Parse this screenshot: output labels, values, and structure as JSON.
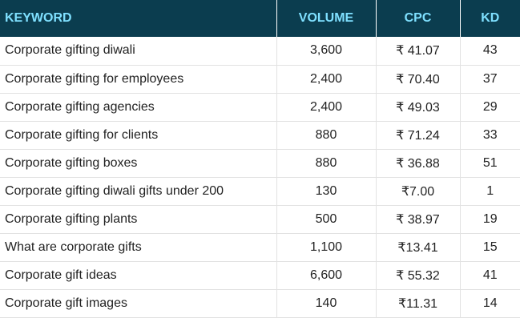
{
  "table": {
    "headers": [
      "KEYWORD",
      "VOLUME",
      "CPC",
      "KD"
    ],
    "rows": [
      {
        "keyword": "Corporate gifting diwali",
        "volume": "3,600",
        "cpc": "₹ 41.07",
        "kd": "43"
      },
      {
        "keyword": "Corporate gifting for employees",
        "volume": "2,400",
        "cpc": "₹ 70.40",
        "kd": "37"
      },
      {
        "keyword": "Corporate gifting agencies",
        "volume": "2,400",
        "cpc": "₹ 49.03",
        "kd": "29"
      },
      {
        "keyword": "Corporate gifting for clients",
        "volume": "880",
        "cpc": "₹ 71.24",
        "kd": "33"
      },
      {
        "keyword": "Corporate gifting boxes",
        "volume": "880",
        "cpc": "₹ 36.88",
        "kd": "51"
      },
      {
        "keyword": "Corporate gifting diwali gifts under 200",
        "volume": "130",
        "cpc": "₹7.00",
        "kd": "1"
      },
      {
        "keyword": "Corporate gifting plants",
        "volume": "500",
        "cpc": "₹ 38.97",
        "kd": "19"
      },
      {
        "keyword": "What are corporate gifts",
        "volume": "1,100",
        "cpc": "₹13.41",
        "kd": "15"
      },
      {
        "keyword": "Corporate gift ideas",
        "volume": "6,600",
        "cpc": "₹ 55.32",
        "kd": "41"
      },
      {
        "keyword": "Corporate gift images",
        "volume": "140",
        "cpc": "₹11.31",
        "kd": "14"
      }
    ]
  },
  "colors": {
    "header_background": "#0b3d4f",
    "header_text": "#7fe0ff",
    "body_text": "#222222",
    "grid_line": "#e2e2e2"
  }
}
